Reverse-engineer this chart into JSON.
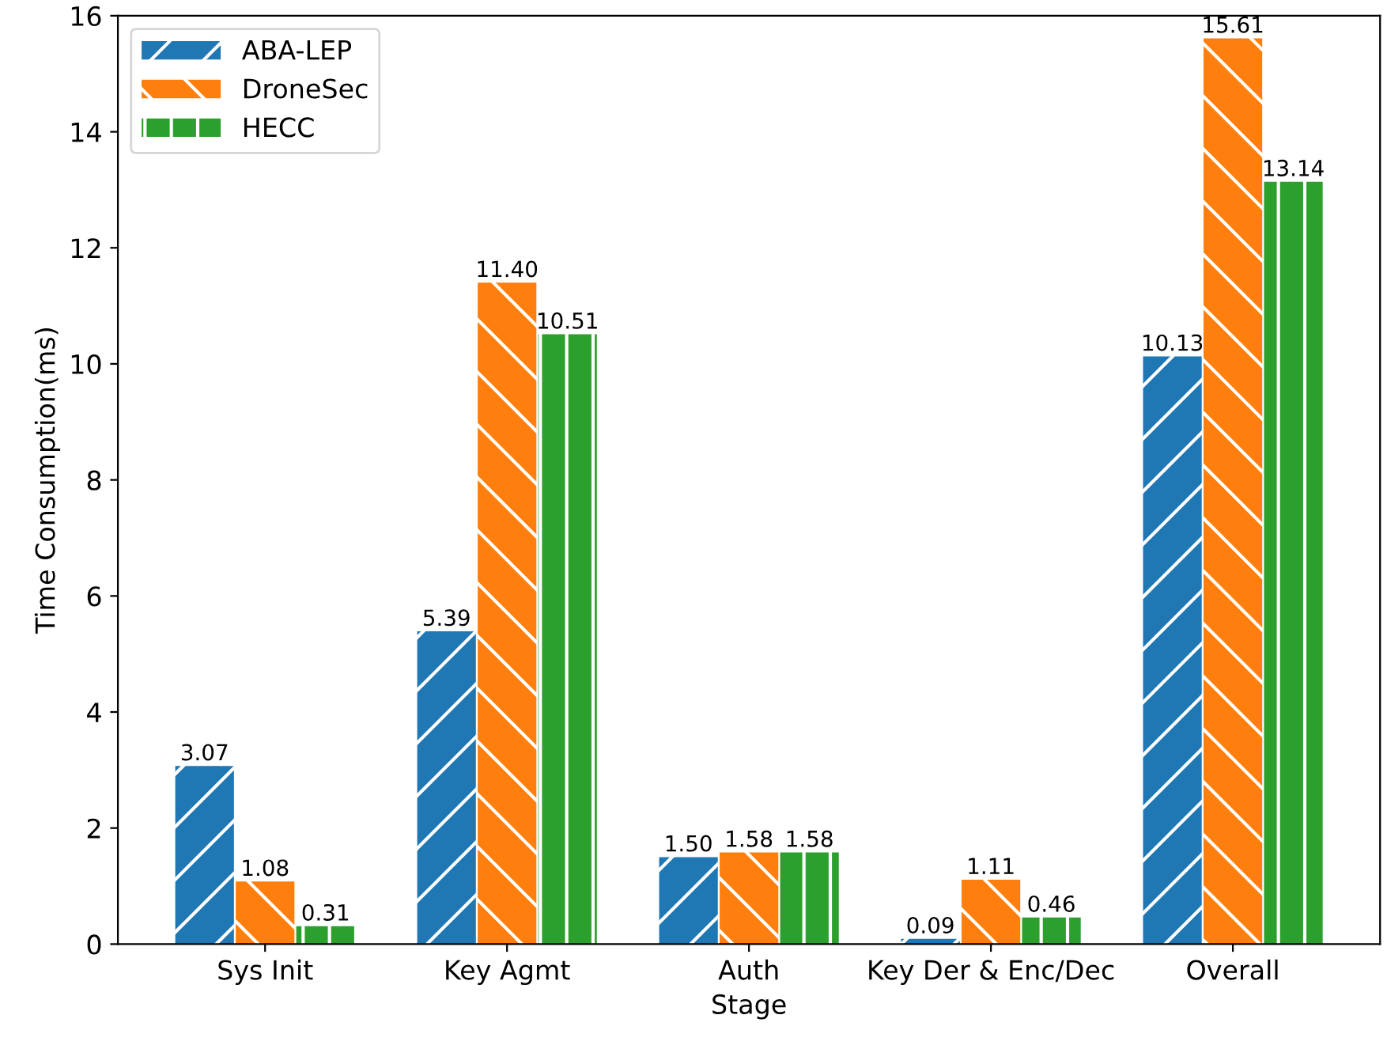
{
  "chart_data": {
    "type": "bar",
    "xlabel": "Stage",
    "ylabel": "Time Consumption(ms)",
    "categories": [
      "Sys Init",
      "Key Agmt",
      "Auth",
      "Key Der & Enc/Dec",
      "Overall"
    ],
    "series": [
      {
        "name": "ABA-LEP",
        "color": "#1f77b4",
        "values": [
          3.07,
          5.39,
          1.5,
          0.09,
          10.13
        ],
        "value_labels": [
          "3.07",
          "5.39",
          "1.50",
          "0.09",
          "10.13"
        ]
      },
      {
        "name": "DroneSec",
        "color": "#ff7f0e",
        "values": [
          1.08,
          11.4,
          1.58,
          1.11,
          15.61
        ],
        "value_labels": [
          "1.08",
          "11.40",
          "1.58",
          "1.11",
          "15.61"
        ]
      },
      {
        "name": "HECC",
        "color": "#2ca02c",
        "values": [
          0.31,
          10.51,
          1.58,
          0.46,
          13.14
        ],
        "value_labels": [
          "0.31",
          "10.51",
          "1.58",
          "0.46",
          "13.14"
        ]
      }
    ],
    "ylim": [
      0,
      16
    ],
    "yticks": [
      0,
      2,
      4,
      6,
      8,
      10,
      12,
      14,
      16
    ],
    "legend": "top left",
    "grid": false
  }
}
